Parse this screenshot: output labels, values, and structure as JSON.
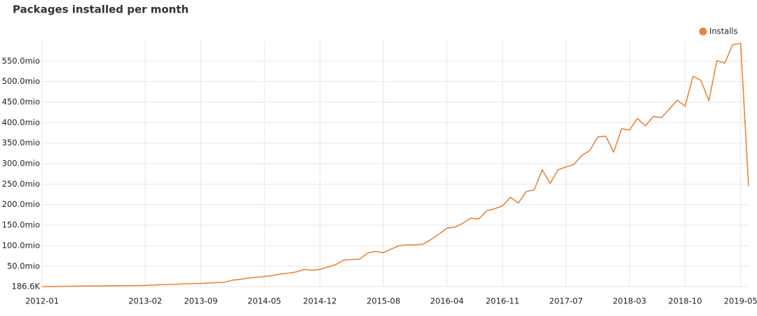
{
  "chart_data": {
    "type": "line",
    "title": "Packages installed per month",
    "categories": [
      "2012-01",
      null,
      null,
      null,
      null,
      null,
      null,
      null,
      null,
      null,
      null,
      null,
      null,
      "2013-02",
      null,
      null,
      null,
      null,
      null,
      null,
      "2013-09",
      null,
      null,
      null,
      null,
      null,
      null,
      null,
      "2014-05",
      null,
      null,
      null,
      null,
      null,
      null,
      "2014-12",
      null,
      null,
      null,
      null,
      null,
      null,
      null,
      "2015-08",
      null,
      null,
      null,
      null,
      null,
      null,
      null,
      "2016-04",
      null,
      null,
      null,
      null,
      null,
      null,
      "2016-11",
      null,
      null,
      null,
      null,
      null,
      null,
      null,
      "2017-07",
      null,
      null,
      null,
      null,
      null,
      null,
      null,
      "2018-03",
      null,
      null,
      null,
      null,
      null,
      null,
      "2018-10",
      null,
      null,
      null,
      null,
      null,
      null,
      "2019-05",
      null
    ],
    "series": [
      {
        "name": "Installs",
        "color": "#e8853d",
        "values": [
          186600,
          500000,
          800000,
          1000000,
          1200000,
          1500000,
          1700000,
          1900000,
          2000000,
          2200000,
          2400000,
          2600000,
          2800000,
          3000000,
          4000000,
          5000000,
          5500000,
          6000000,
          7000000,
          7500000,
          8000000,
          9000000,
          10000000,
          11000000,
          16000000,
          18000000,
          21000000,
          23000000,
          25000000,
          27000000,
          31000000,
          33000000,
          36000000,
          42000000,
          40000000,
          42000000,
          48000000,
          54000000,
          65000000,
          66000000,
          67000000,
          82000000,
          86000000,
          83000000,
          92000000,
          100000000,
          102000000,
          102000000,
          104000000,
          115000000,
          128000000,
          143000000,
          145000000,
          155000000,
          167000000,
          165000000,
          185000000,
          190000000,
          197000000,
          218000000,
          204000000,
          232000000,
          236000000,
          285000000,
          252000000,
          285000000,
          292000000,
          298000000,
          320000000,
          332000000,
          365000000,
          367000000,
          328000000,
          385000000,
          382000000,
          410000000,
          392000000,
          415000000,
          412000000,
          432000000,
          455000000,
          440000000,
          513000000,
          503000000,
          453000000,
          551000000,
          545000000,
          590000000,
          593000000,
          245000000
        ]
      }
    ],
    "ylim": [
      186600,
      600000000
    ],
    "yticks": [
      {
        "value": 186600,
        "label": "186.6K"
      },
      {
        "value": 50000000,
        "label": "50.0mio"
      },
      {
        "value": 100000000,
        "label": "100.0mio"
      },
      {
        "value": 150000000,
        "label": "150.0mio"
      },
      {
        "value": 200000000,
        "label": "200.0mio"
      },
      {
        "value": 250000000,
        "label": "250.0mio"
      },
      {
        "value": 300000000,
        "label": "300.0mio"
      },
      {
        "value": 350000000,
        "label": "350.0mio"
      },
      {
        "value": 400000000,
        "label": "400.0mio"
      },
      {
        "value": 450000000,
        "label": "450.0mio"
      },
      {
        "value": 500000000,
        "label": "500.0mio"
      },
      {
        "value": 550000000,
        "label": "550.0mio"
      }
    ],
    "grid": true,
    "legend": "top-right"
  }
}
